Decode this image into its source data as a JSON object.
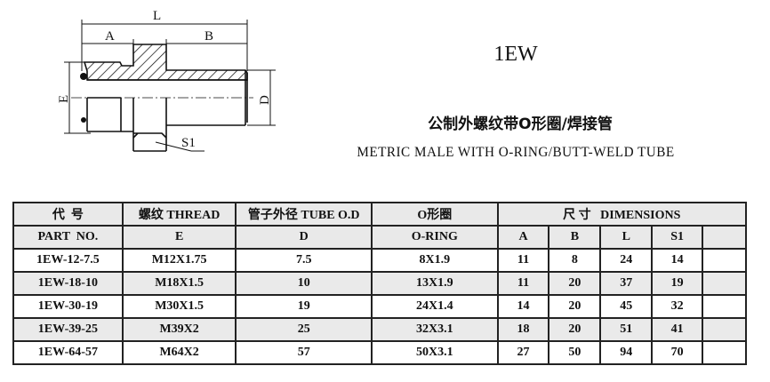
{
  "drawing": {
    "labels": {
      "L": "L",
      "A": "A",
      "B": "B",
      "E": "E",
      "D": "D",
      "S1": "S1"
    }
  },
  "title": {
    "model": "1EW",
    "chinese": "公制外螺纹带O形圈/焊接管",
    "english": "METRIC MALE WITH O-RING/BUTT-WELD TUBE"
  },
  "table": {
    "header1": {
      "part": "代  号",
      "thread": "螺纹 THREAD",
      "tube": "管子外径 TUBE O.D",
      "oring": "O形圈",
      "dims": "尺 寸   DIMENSIONS"
    },
    "header2": {
      "part": "PART  NO.",
      "thread": "E",
      "tube": "D",
      "oring": "O-RING",
      "a": "A",
      "b": "B",
      "l": "L",
      "s1": "S1"
    },
    "rows": [
      {
        "part": "1EW-12-7.5",
        "thread": "M12X1.75",
        "tube": "7.5",
        "oring": "8X1.9",
        "a": "11",
        "b": "8",
        "l": "24",
        "s1": "14"
      },
      {
        "part": "1EW-18-10",
        "thread": "M18X1.5",
        "tube": "10",
        "oring": "13X1.9",
        "a": "11",
        "b": "20",
        "l": "37",
        "s1": "19"
      },
      {
        "part": "1EW-30-19",
        "thread": "M30X1.5",
        "tube": "19",
        "oring": "24X1.4",
        "a": "14",
        "b": "20",
        "l": "45",
        "s1": "32"
      },
      {
        "part": "1EW-39-25",
        "thread": "M39X2",
        "tube": "25",
        "oring": "32X3.1",
        "a": "18",
        "b": "20",
        "l": "51",
        "s1": "41"
      },
      {
        "part": "1EW-64-57",
        "thread": "M64X2",
        "tube": "57",
        "oring": "50X3.1",
        "a": "27",
        "b": "50",
        "l": "94",
        "s1": "70"
      }
    ]
  }
}
